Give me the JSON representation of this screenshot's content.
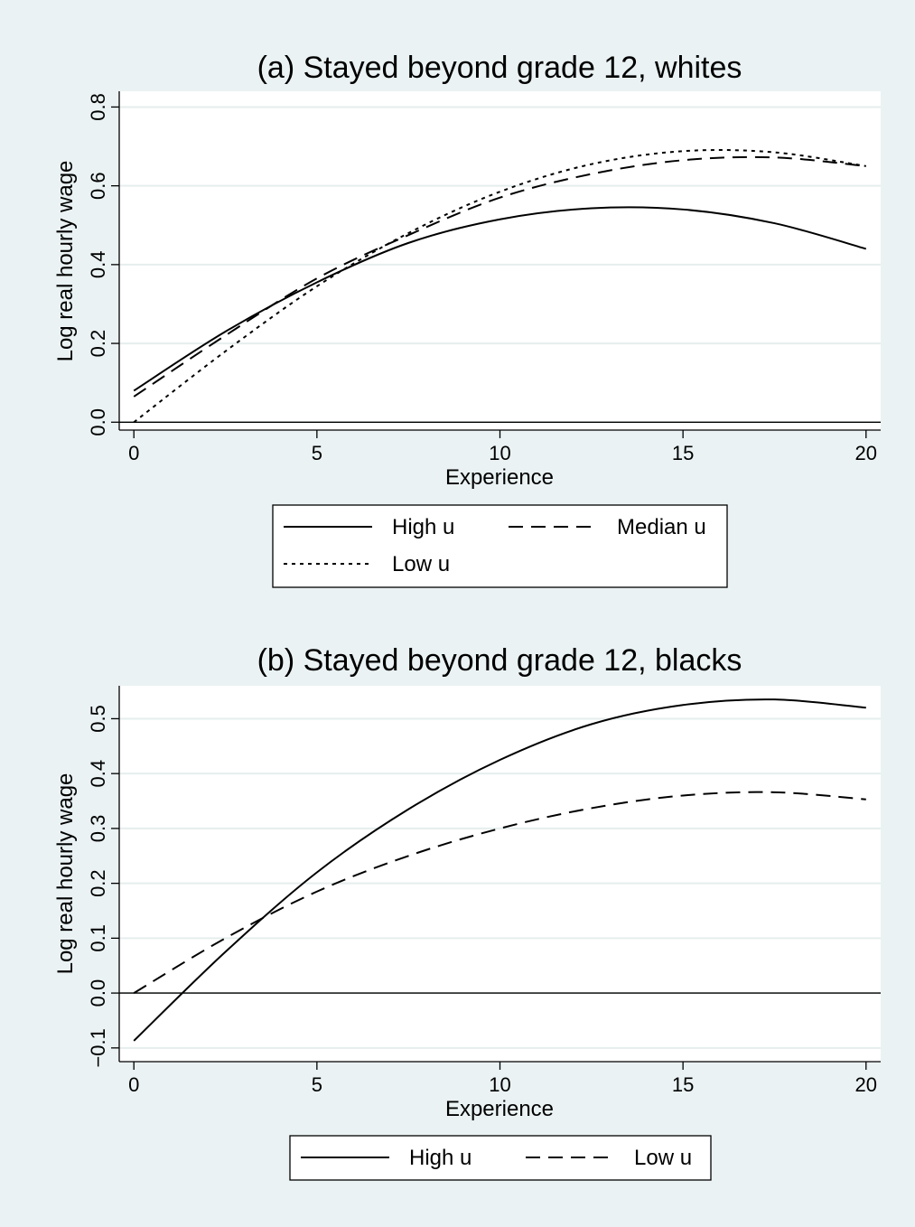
{
  "chart_data": [
    {
      "type": "line",
      "title": "(a) Stayed beyond grade 12, whites",
      "xlabel": "Experience",
      "ylabel": "Log real hourly wage",
      "xlim": [
        -0.4,
        20.4
      ],
      "ylim": [
        -0.02,
        0.84
      ],
      "xticks": [
        0,
        5,
        10,
        15,
        20
      ],
      "xtick_labels": [
        "0",
        "5",
        "10",
        "15",
        "20"
      ],
      "yticks": [
        0.0,
        0.2,
        0.4,
        0.6,
        0.8
      ],
      "ytick_labels": [
        "0.0",
        "0.2",
        "0.4",
        "0.6",
        "0.8"
      ],
      "grid": true,
      "reference_line_y": 0,
      "legend_position": "bottom",
      "x": [
        0,
        2.5,
        5,
        7.5,
        10,
        12.5,
        15,
        17.5,
        20
      ],
      "series": [
        {
          "name": "High u",
          "style": "solid",
          "values": [
            0.08,
            0.23,
            0.355,
            0.455,
            0.515,
            0.543,
            0.54,
            0.505,
            0.44
          ]
        },
        {
          "name": "Median u",
          "style": "dashed",
          "values": [
            0.065,
            0.22,
            0.365,
            0.475,
            0.57,
            0.63,
            0.665,
            0.672,
            0.65
          ]
        },
        {
          "name": "Low u",
          "style": "dotted",
          "values": [
            0.0,
            0.18,
            0.345,
            0.48,
            0.585,
            0.655,
            0.688,
            0.685,
            0.65
          ]
        }
      ]
    },
    {
      "type": "line",
      "title": "(b) Stayed beyond grade 12, blacks",
      "xlabel": "Experience",
      "ylabel": "Log real hourly wage",
      "xlim": [
        -0.4,
        20.4
      ],
      "ylim": [
        -0.125,
        0.56
      ],
      "xticks": [
        0,
        5,
        10,
        15,
        20
      ],
      "xtick_labels": [
        "0",
        "5",
        "10",
        "15",
        "20"
      ],
      "yticks": [
        -0.1,
        0.0,
        0.1,
        0.2,
        0.3,
        0.4,
        0.5
      ],
      "ytick_labels": [
        "−0.1",
        "0.0",
        "0.1",
        "0.2",
        "0.3",
        "0.4",
        "0.5"
      ],
      "grid": true,
      "reference_line_y": 0,
      "legend_position": "bottom",
      "x": [
        0,
        2.5,
        5,
        7.5,
        10,
        12.5,
        15,
        17.5,
        20
      ],
      "series": [
        {
          "name": "High u",
          "style": "solid",
          "values": [
            -0.087,
            0.075,
            0.22,
            0.335,
            0.425,
            0.49,
            0.525,
            0.535,
            0.52
          ]
        },
        {
          "name": "Low u",
          "style": "dashed",
          "values": [
            0.0,
            0.1,
            0.185,
            0.25,
            0.3,
            0.337,
            0.36,
            0.366,
            0.353
          ]
        }
      ]
    }
  ]
}
